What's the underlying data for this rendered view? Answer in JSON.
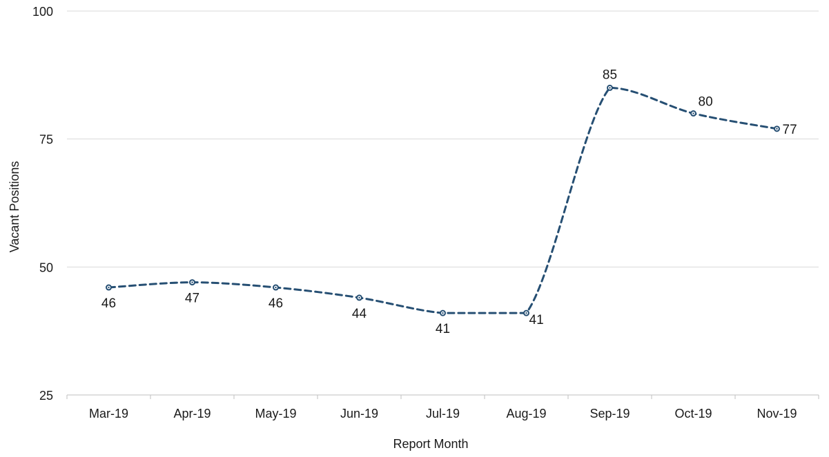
{
  "chart_data": {
    "type": "line",
    "title": "",
    "xlabel": "Report Month",
    "ylabel": "Vacant Positions",
    "categories": [
      "Mar-19",
      "Apr-19",
      "May-19",
      "Jun-19",
      "Jul-19",
      "Aug-19",
      "Sep-19",
      "Oct-19",
      "Nov-19"
    ],
    "series": [
      {
        "values": [
          46,
          47,
          46,
          44,
          41,
          41,
          85,
          80,
          77
        ],
        "color": "#264f73",
        "line_style": "dashed",
        "smooth": true,
        "marker": "circle"
      }
    ],
    "ylim": [
      25,
      100
    ],
    "yticks": [
      25,
      50,
      75,
      100
    ],
    "grid": true,
    "legend": "none",
    "data_labels": true
  }
}
